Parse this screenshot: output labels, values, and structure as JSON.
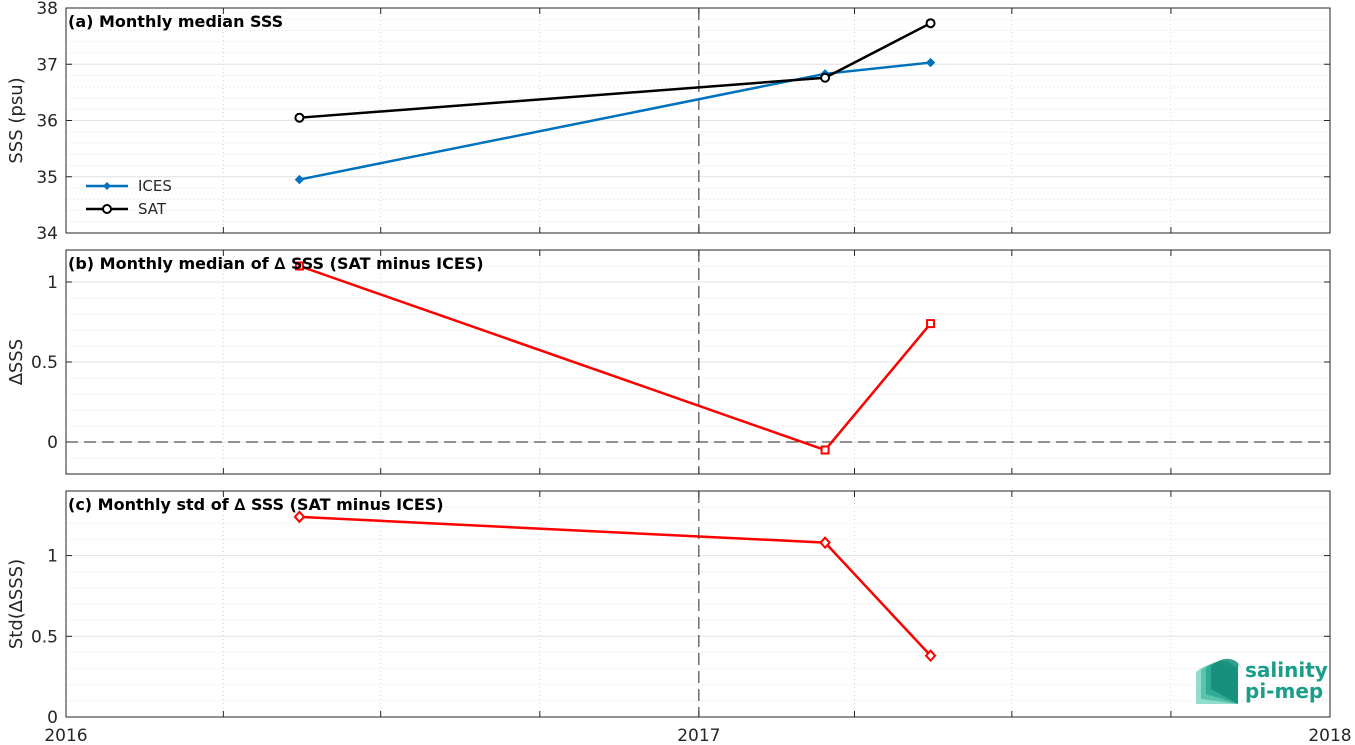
{
  "chart_data": [
    {
      "type": "line",
      "title": "(a) Monthly median SSS",
      "xlabel": "",
      "ylabel": "SSS (psu)",
      "xlim": [
        "2016-01-01",
        "2018-01-01"
      ],
      "xticks": [
        "2016",
        "2017",
        "2018"
      ],
      "ylim": [
        34,
        38
      ],
      "yticks": [
        "34",
        "35",
        "36",
        "37",
        "38"
      ],
      "grid": true,
      "legend": "bottom-left",
      "vline": "2017-01-01",
      "series": [
        {
          "name": "ICES",
          "color": "#0072BD",
          "marker": "diamond-filled",
          "x": [
            "2016-05-15",
            "2017-03-15",
            "2017-05-15"
          ],
          "y": [
            34.95,
            36.83,
            37.03
          ]
        },
        {
          "name": "SAT",
          "color": "#000000",
          "marker": "circle-open",
          "x": [
            "2016-05-15",
            "2017-03-15",
            "2017-05-15"
          ],
          "y": [
            36.05,
            36.76,
            37.73
          ]
        }
      ]
    },
    {
      "type": "line",
      "title": "(b) Monthly median of ∆ SSS (SAT minus ICES)",
      "xlabel": "",
      "ylabel": "∆SSS",
      "xlim": [
        "2016-01-01",
        "2018-01-01"
      ],
      "ylim": [
        -0.2,
        1.2
      ],
      "yticks": [
        "0",
        "0.5",
        "1"
      ],
      "grid": true,
      "vline": "2017-01-01",
      "hline": 0,
      "series": [
        {
          "color": "#FF0000",
          "marker": "square-open",
          "x": [
            "2016-05-15",
            "2017-03-15",
            "2017-05-15"
          ],
          "y": [
            1.1,
            -0.05,
            0.74
          ]
        }
      ]
    },
    {
      "type": "line",
      "title": "(c) Monthly std of ∆ SSS (SAT minus ICES)",
      "xlabel": "",
      "ylabel": "Std(∆SSS)",
      "xlim": [
        "2016-01-01",
        "2018-01-01"
      ],
      "xticks": [
        "2016",
        "2017",
        "2018"
      ],
      "ylim": [
        0,
        1.4
      ],
      "yticks": [
        "0",
        "0.5",
        "1"
      ],
      "grid": true,
      "vline": "2017-01-01",
      "series": [
        {
          "color": "#FF0000",
          "marker": "diamond-open",
          "x": [
            "2016-05-15",
            "2017-03-15",
            "2017-05-15"
          ],
          "y": [
            1.24,
            1.08,
            0.38
          ]
        }
      ]
    }
  ],
  "logo": {
    "line1": "salinity",
    "line2": "pi-mep",
    "color": "#1a9e8a"
  }
}
